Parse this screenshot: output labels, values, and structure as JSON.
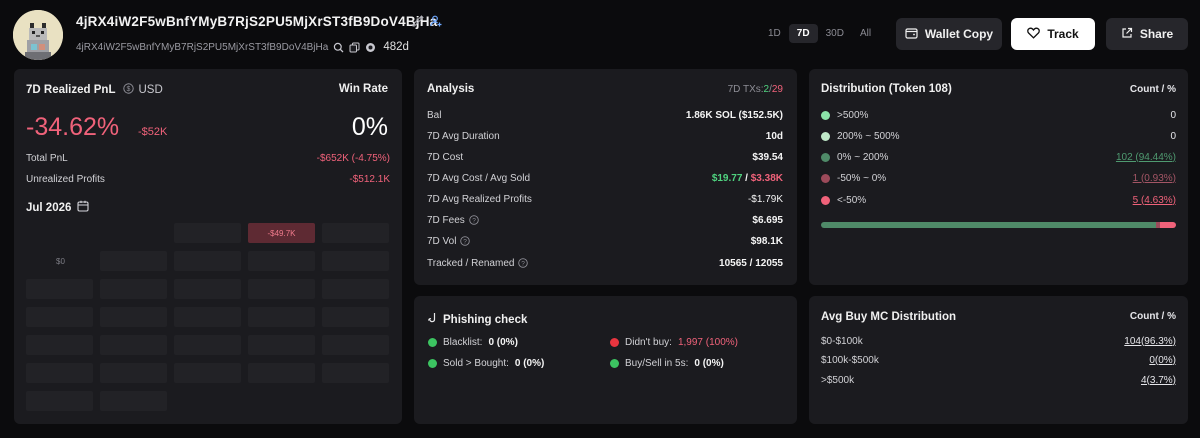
{
  "header": {
    "address": "4jRX4iW2F5wBnfYMyB7RjS2PU5MjXrST3fB9DoV4BjHa",
    "address_sub": "4jRX4iW2F5wBnfYMyB7RjS2PU5MjXrST3fB9DoV4BjHa",
    "age": "482d",
    "periods": [
      "1D",
      "7D",
      "30D",
      "All"
    ],
    "active_period": "7D",
    "wallet_copy_label": "Wallet Copy",
    "track_label": "Track",
    "share_label": "Share"
  },
  "pnl": {
    "title": "7D Realized PnL",
    "currency": "USD",
    "value_pct": "-34.62%",
    "value_usd": "-$52K",
    "win_rate_label": "Win Rate",
    "win_rate": "0%",
    "total_pnl_label": "Total PnL",
    "total_pnl": "-$652K (-4.75%)",
    "unrealized_label": "Unrealized Profits",
    "unrealized": "-$512.1K",
    "month": "Jul 2026",
    "calendar_highlight": "-$49.7K",
    "calendar_zero": "$0"
  },
  "analysis": {
    "title": "Analysis",
    "txs_label": "7D TXs:",
    "txs_buy": "2",
    "txs_sep": "/",
    "txs_sell": "29",
    "rows": [
      {
        "label": "Bal",
        "value": "1.86K SOL ($152.5K)"
      },
      {
        "label": "7D Avg Duration",
        "value": "10d"
      },
      {
        "label": "7D Cost",
        "value": "$39.54"
      },
      {
        "label": "7D Avg Cost / Avg Sold",
        "value_buy": "$19.77",
        "sep": " / ",
        "value_sell": "$3.38K"
      },
      {
        "label": "7D Avg Realized Profits",
        "value": "-$1.79K"
      },
      {
        "label": "7D Fees",
        "value": "$6.695"
      },
      {
        "label": "7D Vol",
        "value": "$98.1K"
      },
      {
        "label": "Tracked / Renamed",
        "value": "10565 / 12055"
      }
    ]
  },
  "distribution": {
    "title": "Distribution (Token 108)",
    "col_label": "Count / %",
    "rows": [
      {
        "label": ">500%",
        "value": "0",
        "color": "#8be2a8"
      },
      {
        "label": "200% ~ 500%",
        "value": "0",
        "color": "#bfe8c8"
      },
      {
        "label": "0% ~ 200%",
        "value": "102 (94.44%)",
        "color": "#4f8a68"
      },
      {
        "label": "-50% ~ 0%",
        "value": "1 (0.93%)",
        "color": "#9c4a5a"
      },
      {
        "label": "<-50%",
        "value": "5 (4.63%)",
        "color": "#f0627a"
      }
    ],
    "bar": [
      94.44,
      0.93,
      4.63
    ],
    "bar_colors": [
      "#4f8a68",
      "#9c4a5a",
      "#f0627a"
    ]
  },
  "phishing": {
    "title": "Phishing check",
    "blacklist_label": "Blacklist:",
    "blacklist_value": "0 (0%)",
    "didnt_buy_label": "Didn't buy:",
    "didnt_buy_value": "1,997 (100%)",
    "sold_label": "Sold > Bought:",
    "sold_value": "0 (0%)",
    "buysell_label": "Buy/Sell in 5s:",
    "buysell_value": "0 (0%)"
  },
  "avg_mc": {
    "title": "Avg Buy MC Distribution",
    "col_label": "Count / %",
    "rows": [
      {
        "label": "$0-$100k",
        "value": "104(96.3%)"
      },
      {
        "label": "$100k-$500k",
        "value": "0(0%)"
      },
      {
        "label": ">$500k",
        "value": "4(3.7%)"
      }
    ]
  },
  "colors": {
    "negative": "#f0627a",
    "positive": "#4fd27f",
    "card": "#1b1b1f",
    "background": "#0b0b0d"
  }
}
